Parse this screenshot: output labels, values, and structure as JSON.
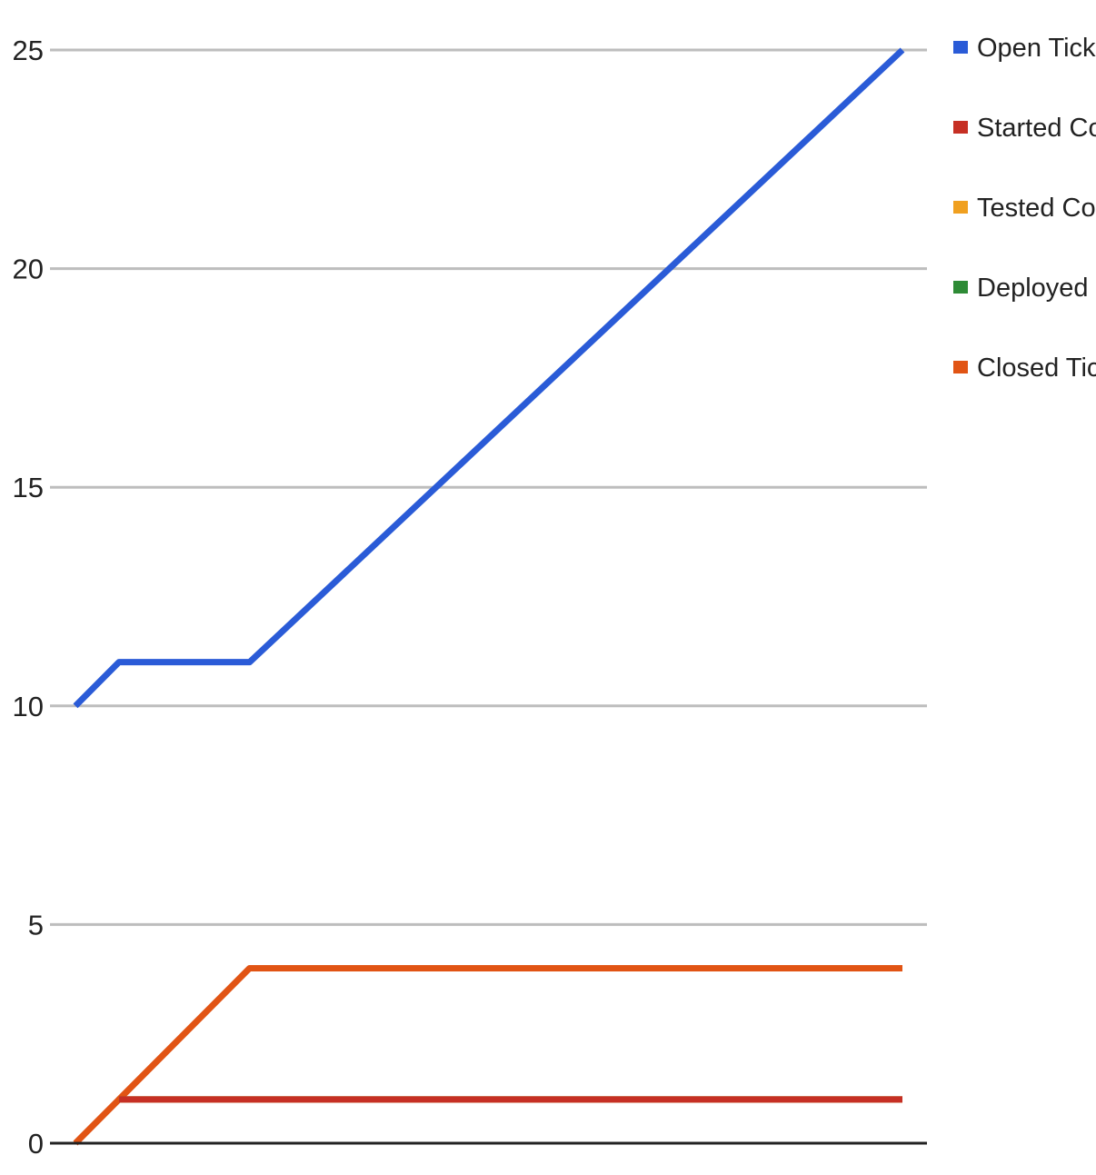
{
  "chart_data": {
    "type": "line",
    "title": "",
    "xlabel": "",
    "ylabel": "",
    "ylim": [
      0,
      25
    ],
    "yticks": [
      0,
      5,
      10,
      15,
      20,
      25
    ],
    "grid": true,
    "legend_position": "right",
    "x": [
      0,
      1,
      4,
      19
    ],
    "series": [
      {
        "name": "Open Tickets",
        "color": "#2a5bd7",
        "values": [
          10,
          11,
          11,
          25
        ]
      },
      {
        "name": "Started Coding",
        "color": "#c62f24",
        "values": [
          null,
          1,
          1,
          1
        ]
      },
      {
        "name": "Tested Code",
        "color": "#f0a020",
        "values": [
          null,
          1,
          1,
          1
        ]
      },
      {
        "name": "Deployed Code",
        "color": "#2e8b36",
        "values": [
          null,
          1,
          1,
          1
        ]
      },
      {
        "name": "Closed Tickets",
        "color": "#e15414",
        "values": [
          0,
          1,
          4,
          4
        ]
      }
    ]
  }
}
